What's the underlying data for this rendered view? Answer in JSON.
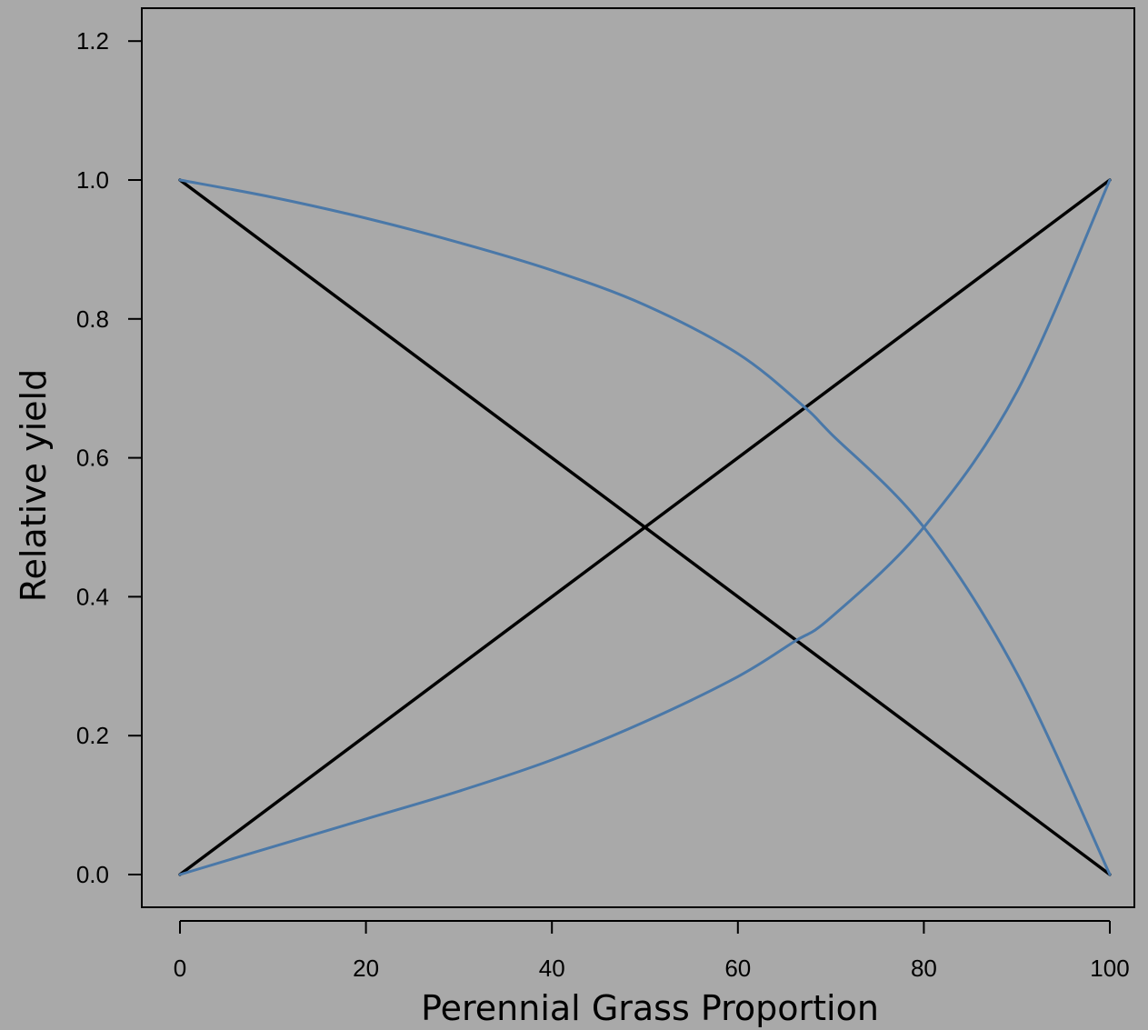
{
  "chart_data": {
    "type": "line",
    "title": "",
    "xlabel": "Perennial Grass Proportion",
    "ylabel": "Relative yield",
    "xlim": [
      -2,
      100
    ],
    "ylim": [
      -0.046,
      1.255
    ],
    "x_ticks": [
      0,
      20,
      40,
      60,
      80,
      100
    ],
    "x_tick_labels": [
      "0",
      "20",
      "40",
      "60",
      "80",
      "100"
    ],
    "y_ticks": [
      0.0,
      0.2,
      0.4,
      0.6,
      0.8,
      1.0,
      1.2
    ],
    "y_tick_labels": [
      "0.0",
      "0.2",
      "0.4",
      "0.6",
      "0.8",
      "1.0",
      "1.2"
    ],
    "grid": false,
    "background_color": "#a9a9a9",
    "series": [
      {
        "color": "#000000",
        "x": [
          0,
          100
        ],
        "y": [
          1.0,
          0.0
        ]
      },
      {
        "color": "#000000",
        "x": [
          0,
          100
        ],
        "y": [
          0.0,
          1.0
        ]
      },
      {
        "color": "#4a78a8",
        "x": [
          0,
          10,
          20,
          30,
          40,
          50,
          60,
          67,
          70,
          80,
          90,
          100
        ],
        "y": [
          1.0,
          0.975,
          0.945,
          0.91,
          0.87,
          0.82,
          0.75,
          0.675,
          0.635,
          0.5,
          0.29,
          0.0
        ]
      },
      {
        "color": "#4a78a8",
        "x": [
          0,
          10,
          20,
          30,
          40,
          50,
          60,
          66,
          70,
          80,
          90,
          100
        ],
        "y": [
          0.0,
          0.04,
          0.08,
          0.12,
          0.165,
          0.22,
          0.285,
          0.335,
          0.37,
          0.5,
          0.695,
          1.0
        ]
      }
    ]
  }
}
